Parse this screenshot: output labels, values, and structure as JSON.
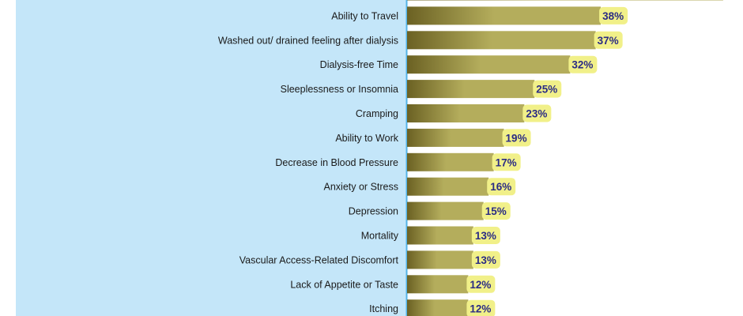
{
  "chart_data": {
    "type": "bar",
    "orientation": "horizontal",
    "categories": [
      "",
      "Ability to Travel",
      "Washed out/ drained feeling after dialysis",
      "Dialysis-free Time",
      "Sleeplessness or Insomnia",
      "Cramping",
      "Ability to Work",
      "Decrease in Blood Pressure",
      "Anxiety or Stress",
      "Depression",
      "Mortality",
      "Vascular Access-Related Discomfort",
      "Lack of Appetite or Taste",
      "Itching"
    ],
    "values": [
      62,
      38,
      37,
      32,
      25,
      23,
      19,
      17,
      16,
      15,
      13,
      13,
      12,
      12
    ],
    "value_labels": [
      "",
      "38%",
      "37%",
      "32%",
      "25%",
      "23%",
      "19%",
      "17%",
      "16%",
      "15%",
      "13%",
      "13%",
      "12%",
      "12%"
    ],
    "value_suffix": "%",
    "xlim": [
      0,
      100
    ],
    "title": "",
    "xlabel": "",
    "ylabel": "",
    "grid": false,
    "colors": {
      "label_panel": "#c4e6f9",
      "axis_line": "#53b3e6",
      "bar_dark": "#6b6123",
      "bar_light": "#b4ad5c",
      "badge": "#f1f089",
      "value_text": "#2b2c84",
      "label_text": "#1a1a1a"
    }
  }
}
